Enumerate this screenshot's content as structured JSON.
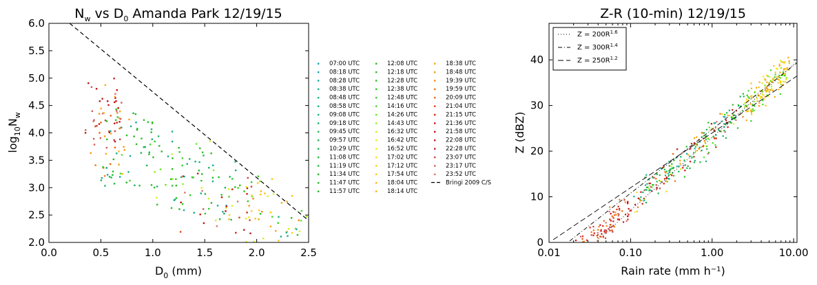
{
  "chart_data": [
    {
      "type": "scatter",
      "title": "N_w vs D_0 Amanda Park 12/19/15",
      "title_parts": {
        "n": "N",
        "w": "w",
        "mid": " vs D",
        "zero": "0",
        "rest": " Amanda Park 12/19/15"
      },
      "xlabel": "D_0 (mm)",
      "xlabel_parts": {
        "d": "D",
        "zero": "0",
        "rest": " (mm)"
      },
      "ylabel": "log10 N_w",
      "ylabel_parts": {
        "log": "log",
        "ten": "10",
        "n": "N",
        "w": "w"
      },
      "xlim": [
        0.0,
        2.5
      ],
      "ylim": [
        2.0,
        6.0
      ],
      "xticks": [
        "0.0",
        "0.5",
        "1.0",
        "1.5",
        "2.0",
        "2.5"
      ],
      "yticks": [
        "2.0",
        "2.5",
        "3.0",
        "3.5",
        "4.0",
        "4.5",
        "5.0",
        "5.5",
        "6.0"
      ],
      "reference_line": {
        "name": "Bringi 2009 C/S",
        "points": [
          [
            0.2,
            6.0
          ],
          [
            2.5,
            2.4
          ]
        ]
      },
      "series": [
        {
          "name": "07:00 UTC",
          "color": "#12a7a5"
        },
        {
          "name": "08:18 UTC",
          "color": "#12a89e"
        },
        {
          "name": "08:28 UTC",
          "color": "#13aa97"
        },
        {
          "name": "08:38 UTC",
          "color": "#14ac8e"
        },
        {
          "name": "08:48 UTC",
          "color": "#15ad86"
        },
        {
          "name": "08:58 UTC",
          "color": "#16ae7d"
        },
        {
          "name": "09:08 UTC",
          "color": "#17b074"
        },
        {
          "name": "09:18 UTC",
          "color": "#18b16a"
        },
        {
          "name": "09:45 UTC",
          "color": "#19b260"
        },
        {
          "name": "09:57 UTC",
          "color": "#1ab356"
        },
        {
          "name": "10:29 UTC",
          "color": "#1bb44b"
        },
        {
          "name": "11:08 UTC",
          "color": "#1cb540"
        },
        {
          "name": "11:19 UTC",
          "color": "#1eb636"
        },
        {
          "name": "11:34 UTC",
          "color": "#20b62d"
        },
        {
          "name": "11:47 UTC",
          "color": "#22b726"
        },
        {
          "name": "11:57 UTC",
          "color": "#24b820"
        },
        {
          "name": "12:08 UTC",
          "color": "#24b91f"
        },
        {
          "name": "12:18 UTC",
          "color": "#25bb1e"
        },
        {
          "name": "12:28 UTC",
          "color": "#27c01e"
        },
        {
          "name": "12:38 UTC",
          "color": "#29c51e"
        },
        {
          "name": "12:48 UTC",
          "color": "#2dcd1e"
        },
        {
          "name": "14:16 UTC",
          "color": "#40da20"
        },
        {
          "name": "14:26 UTC",
          "color": "#5fe620"
        },
        {
          "name": "14:43 UTC",
          "color": "#8bee1e"
        },
        {
          "name": "16:32 UTC",
          "color": "#c9f21a"
        },
        {
          "name": "16:42 UTC",
          "color": "#e8ee16"
        },
        {
          "name": "16:52 UTC",
          "color": "#f5e614"
        },
        {
          "name": "17:02 UTC",
          "color": "#f9da12"
        },
        {
          "name": "17:12 UTC",
          "color": "#fbcc10"
        },
        {
          "name": "17:54 UTC",
          "color": "#fcc00f"
        },
        {
          "name": "18:04 UTC",
          "color": "#fbb40e"
        },
        {
          "name": "18:14 UTC",
          "color": "#fbaa0d"
        },
        {
          "name": "18:38 UTC",
          "color": "#fca40c"
        },
        {
          "name": "18:48 UTC",
          "color": "#f9960c"
        },
        {
          "name": "19:39 UTC",
          "color": "#f5850c"
        },
        {
          "name": "19:59 UTC",
          "color": "#f0740c"
        },
        {
          "name": "20:09 UTC",
          "color": "#e8620c"
        },
        {
          "name": "21:04 UTC",
          "color": "#e0400c"
        },
        {
          "name": "21:15 UTC",
          "color": "#d8200c"
        },
        {
          "name": "21:36 UTC",
          "color": "#d0100c"
        },
        {
          "name": "21:58 UTC",
          "color": "#c80c0c"
        },
        {
          "name": "22:08 UTC",
          "color": "#c40f10"
        },
        {
          "name": "22:28 UTC",
          "color": "#c01818"
        },
        {
          "name": "23:07 UTC",
          "color": "#c84040"
        },
        {
          "name": "23:17 UTC",
          "color": "#d05858"
        },
        {
          "name": "23:52 UTC",
          "color": "#d87070"
        }
      ],
      "clusters": [
        {
          "color_range": [
            40,
            45
          ],
          "x": [
            0.35,
            0.7
          ],
          "y": [
            3.6,
            5.0
          ],
          "n": 40
        },
        {
          "color_range": [
            30,
            36
          ],
          "x": [
            0.4,
            0.8
          ],
          "y": [
            3.2,
            4.9
          ],
          "n": 30
        },
        {
          "color_range": [
            10,
            22
          ],
          "x": [
            0.5,
            1.0
          ],
          "y": [
            3.0,
            4.5
          ],
          "n": 35
        },
        {
          "color_range": [
            0,
            9
          ],
          "x": [
            0.5,
            1.2
          ],
          "y": [
            3.0,
            4.3
          ],
          "n": 25
        },
        {
          "color_range": [
            15,
            24
          ],
          "x": [
            1.0,
            1.6
          ],
          "y": [
            2.5,
            3.9
          ],
          "n": 45
        },
        {
          "color_range": [
            0,
            9
          ],
          "x": [
            1.2,
            1.8
          ],
          "y": [
            2.4,
            3.6
          ],
          "n": 25
        },
        {
          "color_range": [
            36,
            45
          ],
          "x": [
            1.2,
            2.0
          ],
          "y": [
            2.1,
            3.3
          ],
          "n": 25
        },
        {
          "color_range": [
            18,
            30
          ],
          "x": [
            1.6,
            2.2
          ],
          "y": [
            2.4,
            3.3
          ],
          "n": 30
        },
        {
          "color_range": [
            24,
            34
          ],
          "x": [
            1.9,
            2.5
          ],
          "y": [
            2.0,
            3.0
          ],
          "n": 25
        },
        {
          "color_range": [
            0,
            24
          ],
          "x": [
            2.2,
            2.5
          ],
          "y": [
            2.0,
            2.6
          ],
          "n": 12
        }
      ]
    },
    {
      "type": "scatter",
      "title": "Z-R (10-min) 12/19/15",
      "xlabel": "Rain rate (mm h^-1)",
      "xlabel_parts": {
        "main": "Rain rate (mm h",
        "sup": "−1",
        "close": ")"
      },
      "ylabel": "Z (dBZ)",
      "xscale": "log",
      "xlim": [
        0.01,
        11.0
      ],
      "ylim": [
        0,
        48
      ],
      "xticks": [
        {
          "v": 0.01,
          "label": "0.01"
        },
        {
          "v": 0.1,
          "label": "0.10"
        },
        {
          "v": 1.0,
          "label": "1.00"
        },
        {
          "v": 10.0,
          "label": "10.00"
        }
      ],
      "yticks": [
        "0",
        "10",
        "20",
        "30",
        "40"
      ],
      "reference_lines": [
        {
          "name": "Z = 200R^1.6",
          "main": "Z = 200R",
          "sup": "1.6",
          "a": 200,
          "b": 1.6,
          "dash": "1,3"
        },
        {
          "name": "Z = 300R^1.4",
          "main": "Z = 300R",
          "sup": "1.4",
          "a": 300,
          "b": 1.4,
          "dash": "6,3,1,3"
        },
        {
          "name": "Z = 250R^1.2",
          "main": "Z = 250R",
          "sup": "1.2",
          "a": 250,
          "b": 1.2,
          "dash": "8,4"
        }
      ],
      "legend_loc": "upper left",
      "scatter_relation": {
        "a": 220,
        "b": 1.55,
        "spread_dbz": 3.5,
        "r_range": [
          0.015,
          9.0
        ],
        "n": 520
      }
    }
  ]
}
